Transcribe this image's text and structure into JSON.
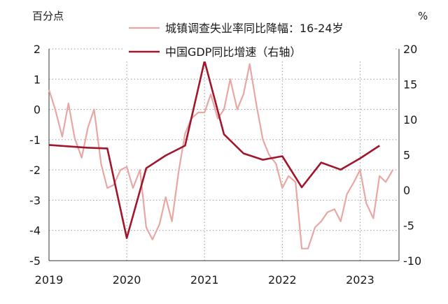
{
  "chart_data": {
    "type": "line",
    "left_axis_unit": "百分点",
    "right_axis_unit": "%",
    "x_ticks": [
      "2019",
      "2020",
      "2021",
      "2022",
      "2023"
    ],
    "x_range": [
      2019.0,
      2023.5
    ],
    "ylim_left": [
      -5,
      2
    ],
    "yticks_left": [
      2,
      1,
      0,
      -1,
      -2,
      -3,
      -4,
      -5
    ],
    "ylim_right": [
      -10,
      20
    ],
    "yticks_right": [
      20,
      15,
      10,
      5,
      0,
      -5,
      -10
    ],
    "grid": true,
    "legend_position": "top",
    "series": [
      {
        "name": "城镇调查失业率同比降幅：16-24岁",
        "axis": "left",
        "color": "#e8a7a4",
        "points": [
          [
            2019.0,
            0.65
          ],
          [
            2019.08,
            0.0
          ],
          [
            2019.17,
            -0.9
          ],
          [
            2019.25,
            0.2
          ],
          [
            2019.33,
            -0.95
          ],
          [
            2019.42,
            -1.6
          ],
          [
            2019.5,
            -0.6
          ],
          [
            2019.58,
            0.0
          ],
          [
            2019.67,
            -1.8
          ],
          [
            2019.75,
            -2.6
          ],
          [
            2019.83,
            -2.5
          ],
          [
            2019.92,
            -2.0
          ],
          [
            2020.0,
            -1.9
          ],
          [
            2020.08,
            -2.6
          ],
          [
            2020.17,
            -2.0
          ],
          [
            2020.25,
            -3.9
          ],
          [
            2020.33,
            -4.3
          ],
          [
            2020.42,
            -3.8
          ],
          [
            2020.5,
            -2.9
          ],
          [
            2020.58,
            -3.7
          ],
          [
            2020.67,
            -2.0
          ],
          [
            2020.75,
            -0.8
          ],
          [
            2020.83,
            -0.3
          ],
          [
            2020.92,
            -0.1
          ],
          [
            2021.0,
            -0.1
          ],
          [
            2021.08,
            0.5
          ],
          [
            2021.17,
            -0.3
          ],
          [
            2021.25,
            0.0
          ],
          [
            2021.33,
            1.0
          ],
          [
            2021.42,
            0.0
          ],
          [
            2021.5,
            0.5
          ],
          [
            2021.58,
            1.5
          ],
          [
            2021.67,
            0.1
          ],
          [
            2021.75,
            -1.0
          ],
          [
            2021.83,
            -1.5
          ],
          [
            2021.92,
            -1.8
          ],
          [
            2022.0,
            -2.6
          ],
          [
            2022.08,
            -2.2
          ],
          [
            2022.17,
            -2.4
          ],
          [
            2022.25,
            -4.6
          ],
          [
            2022.33,
            -4.6
          ],
          [
            2022.42,
            -3.9
          ],
          [
            2022.5,
            -3.7
          ],
          [
            2022.58,
            -3.4
          ],
          [
            2022.67,
            -3.3
          ],
          [
            2022.75,
            -3.7
          ],
          [
            2022.83,
            -2.8
          ],
          [
            2022.92,
            -2.4
          ],
          [
            2023.0,
            -2.0
          ],
          [
            2023.08,
            -3.1
          ],
          [
            2023.17,
            -3.6
          ],
          [
            2023.25,
            -2.2
          ],
          [
            2023.33,
            -2.4
          ],
          [
            2023.42,
            -2.0
          ]
        ]
      },
      {
        "name": "中国GDP同比增速（右轴）",
        "axis": "right",
        "color": "#a1162a",
        "points": [
          [
            2019.0,
            6.4
          ],
          [
            2019.25,
            6.2
          ],
          [
            2019.5,
            6.0
          ],
          [
            2019.75,
            5.9
          ],
          [
            2020.0,
            -6.8
          ],
          [
            2020.25,
            3.1
          ],
          [
            2020.5,
            4.9
          ],
          [
            2020.75,
            6.3
          ],
          [
            2021.0,
            18.3
          ],
          [
            2021.25,
            7.9
          ],
          [
            2021.5,
            5.2
          ],
          [
            2021.75,
            4.3
          ],
          [
            2022.0,
            4.8
          ],
          [
            2022.25,
            0.4
          ],
          [
            2022.5,
            3.9
          ],
          [
            2022.75,
            2.9
          ],
          [
            2023.0,
            4.5
          ],
          [
            2023.25,
            6.3
          ]
        ]
      }
    ]
  }
}
